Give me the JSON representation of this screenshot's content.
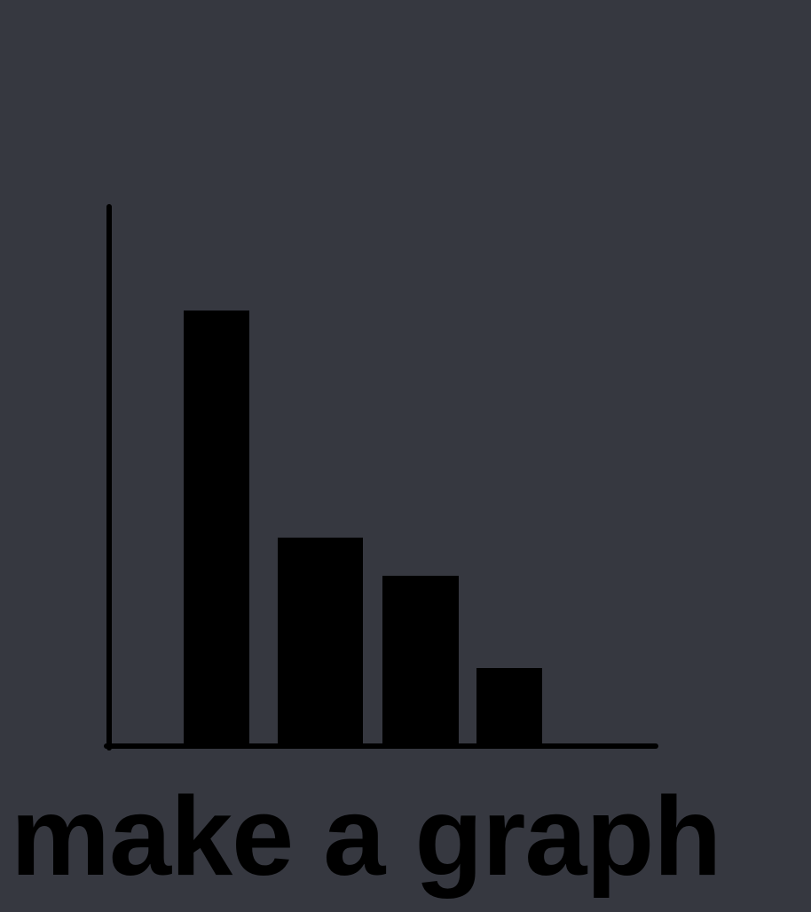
{
  "colors": {
    "background": "#363840",
    "ink": "#000000"
  },
  "icon": {
    "name": "bar-chart-icon",
    "bar_levels": [
      0.8,
      0.38,
      0.31,
      0.14
    ]
  },
  "caption": {
    "text": "make a graph"
  }
}
